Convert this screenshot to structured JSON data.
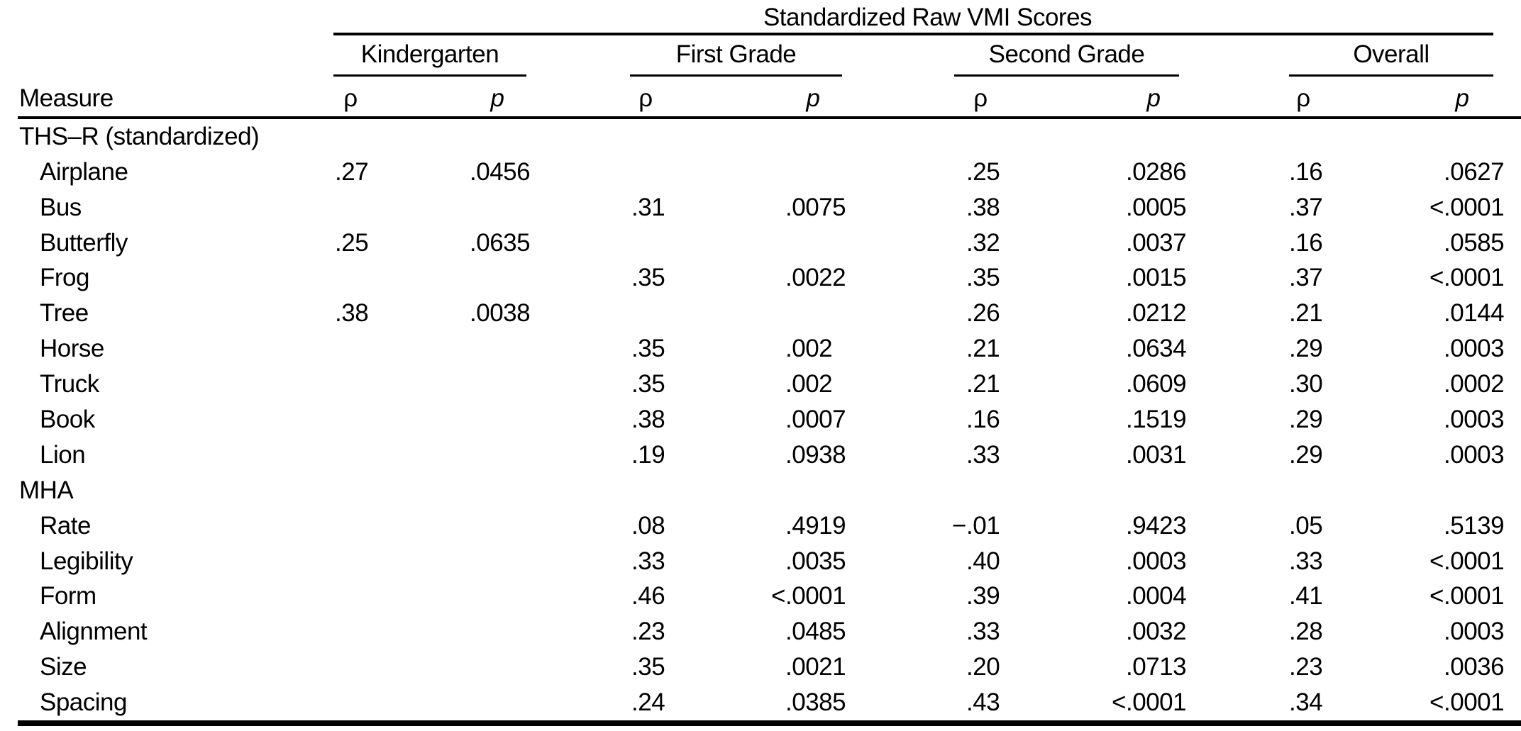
{
  "table": {
    "title": "Standardized Raw VMI Scores",
    "measure_header": "Measure",
    "rho_symbol": "ρ",
    "p_symbol": "p",
    "groups": [
      "Kindergarten",
      "First Grade",
      "Second Grade",
      "Overall"
    ],
    "value_columns_per_group": [
      "ρ",
      "p"
    ],
    "rows": [
      {
        "type": "section",
        "label": "THS–R (standardized)",
        "values": [
          "",
          "",
          "",
          "",
          "",
          "",
          "",
          ""
        ]
      },
      {
        "type": "item",
        "label": "Airplane",
        "values": [
          ".27",
          ".0456",
          "",
          "",
          ".25",
          ".0286",
          ".16",
          ".0627"
        ]
      },
      {
        "type": "item",
        "label": "Bus",
        "values": [
          "",
          "",
          ".31",
          ".0075",
          ".38",
          ".0005",
          ".37",
          "<.0001"
        ]
      },
      {
        "type": "item",
        "label": "Butterfly",
        "values": [
          ".25",
          ".0635",
          "",
          "",
          ".32",
          ".0037",
          ".16",
          ".0585"
        ]
      },
      {
        "type": "item",
        "label": "Frog",
        "values": [
          "",
          "",
          ".35",
          ".0022",
          ".35",
          ".0015",
          ".37",
          "<.0001"
        ]
      },
      {
        "type": "item",
        "label": "Tree",
        "values": [
          ".38",
          ".0038",
          "",
          "",
          ".26",
          ".0212",
          ".21",
          ".0144"
        ]
      },
      {
        "type": "item",
        "label": "Horse",
        "values": [
          "",
          "",
          ".35",
          ".002",
          ".21",
          ".0634",
          ".29",
          ".0003"
        ]
      },
      {
        "type": "item",
        "label": "Truck",
        "values": [
          "",
          "",
          ".35",
          ".002",
          ".21",
          ".0609",
          ".30",
          ".0002"
        ]
      },
      {
        "type": "item",
        "label": "Book",
        "values": [
          "",
          "",
          ".38",
          ".0007",
          ".16",
          ".1519",
          ".29",
          ".0003"
        ]
      },
      {
        "type": "item",
        "label": "Lion",
        "values": [
          "",
          "",
          ".19",
          ".0938",
          ".33",
          ".0031",
          ".29",
          ".0003"
        ]
      },
      {
        "type": "section",
        "label": "MHA",
        "values": [
          "",
          "",
          "",
          "",
          "",
          "",
          "",
          ""
        ]
      },
      {
        "type": "item",
        "label": "Rate",
        "values": [
          "",
          "",
          ".08",
          ".4919",
          "−.01",
          ".9423",
          ".05",
          ".5139"
        ]
      },
      {
        "type": "item",
        "label": "Legibility",
        "values": [
          "",
          "",
          ".33",
          ".0035",
          ".40",
          ".0003",
          ".33",
          "<.0001"
        ]
      },
      {
        "type": "item",
        "label": "Form",
        "values": [
          "",
          "",
          ".46",
          "<.0001",
          ".39",
          ".0004",
          ".41",
          "<.0001"
        ]
      },
      {
        "type": "item",
        "label": "Alignment",
        "values": [
          "",
          "",
          ".23",
          ".0485",
          ".33",
          ".0032",
          ".28",
          ".0003"
        ]
      },
      {
        "type": "item",
        "label": "Size",
        "values": [
          "",
          "",
          ".35",
          ".0021",
          ".20",
          ".0713",
          ".23",
          ".0036"
        ]
      },
      {
        "type": "item",
        "label": "Spacing",
        "values": [
          "",
          "",
          ".24",
          ".0385",
          ".43",
          "<.0001",
          ".34",
          "<.0001"
        ]
      }
    ]
  }
}
